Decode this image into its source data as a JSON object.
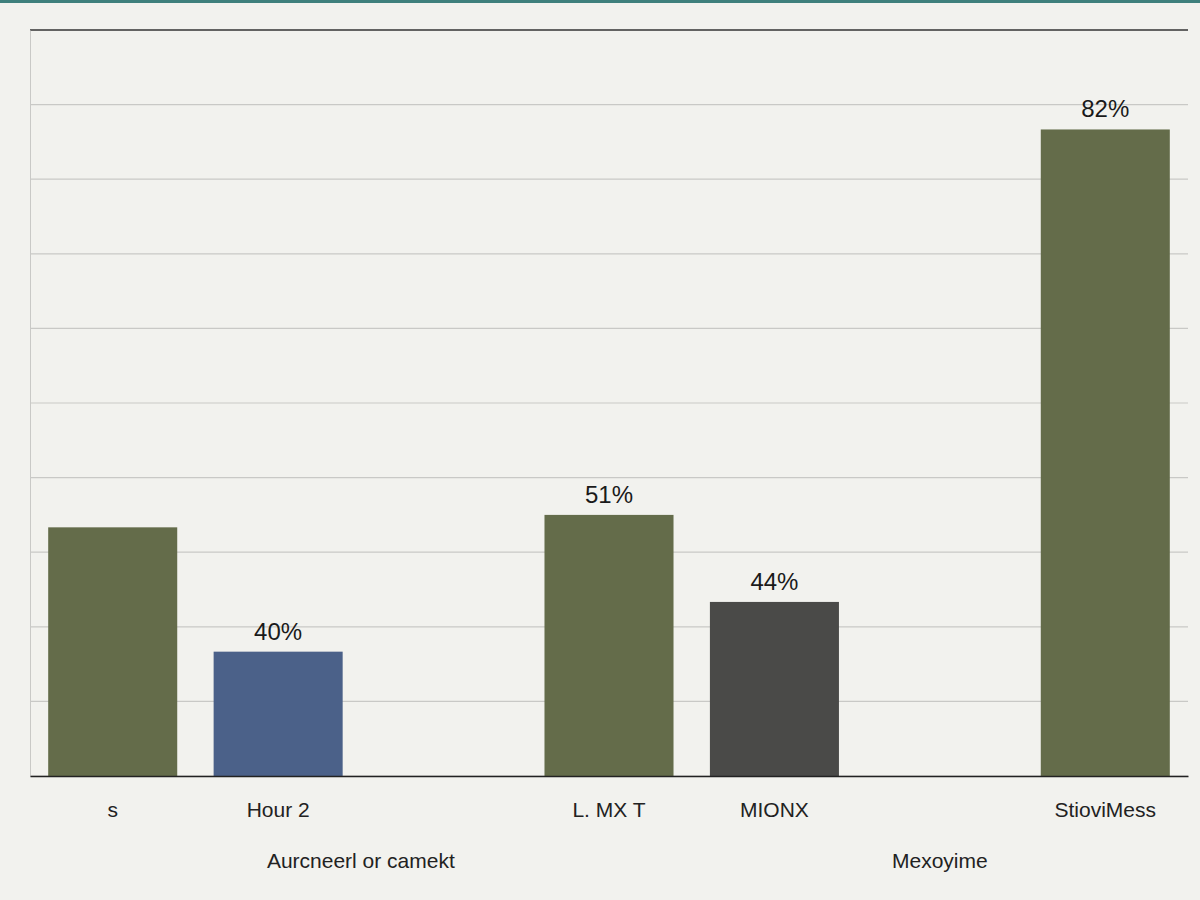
{
  "chart_data": {
    "type": "bar",
    "categories": [
      "s",
      "Hour 2",
      null,
      "L. MX T",
      "MIONX",
      null,
      "StioviMess"
    ],
    "values": [
      50,
      40,
      null,
      51,
      44,
      null,
      82
    ],
    "value_labels": [
      null,
      "40%",
      null,
      "51%",
      "44%",
      null,
      "82%"
    ],
    "colors": [
      "#646c4a",
      "#4b6189",
      null,
      "#646c4a",
      "#4a4a48",
      null,
      "#646c4a"
    ],
    "annotations": [
      "Aurcneerl or camekt",
      "Mexoyime"
    ],
    "ylim": [
      30,
      90
    ],
    "yticks": [
      30,
      36,
      42,
      48,
      54,
      60,
      66,
      72,
      78,
      84,
      90
    ],
    "grid": true,
    "tick_labels": "x",
    "data_labels": true
  }
}
